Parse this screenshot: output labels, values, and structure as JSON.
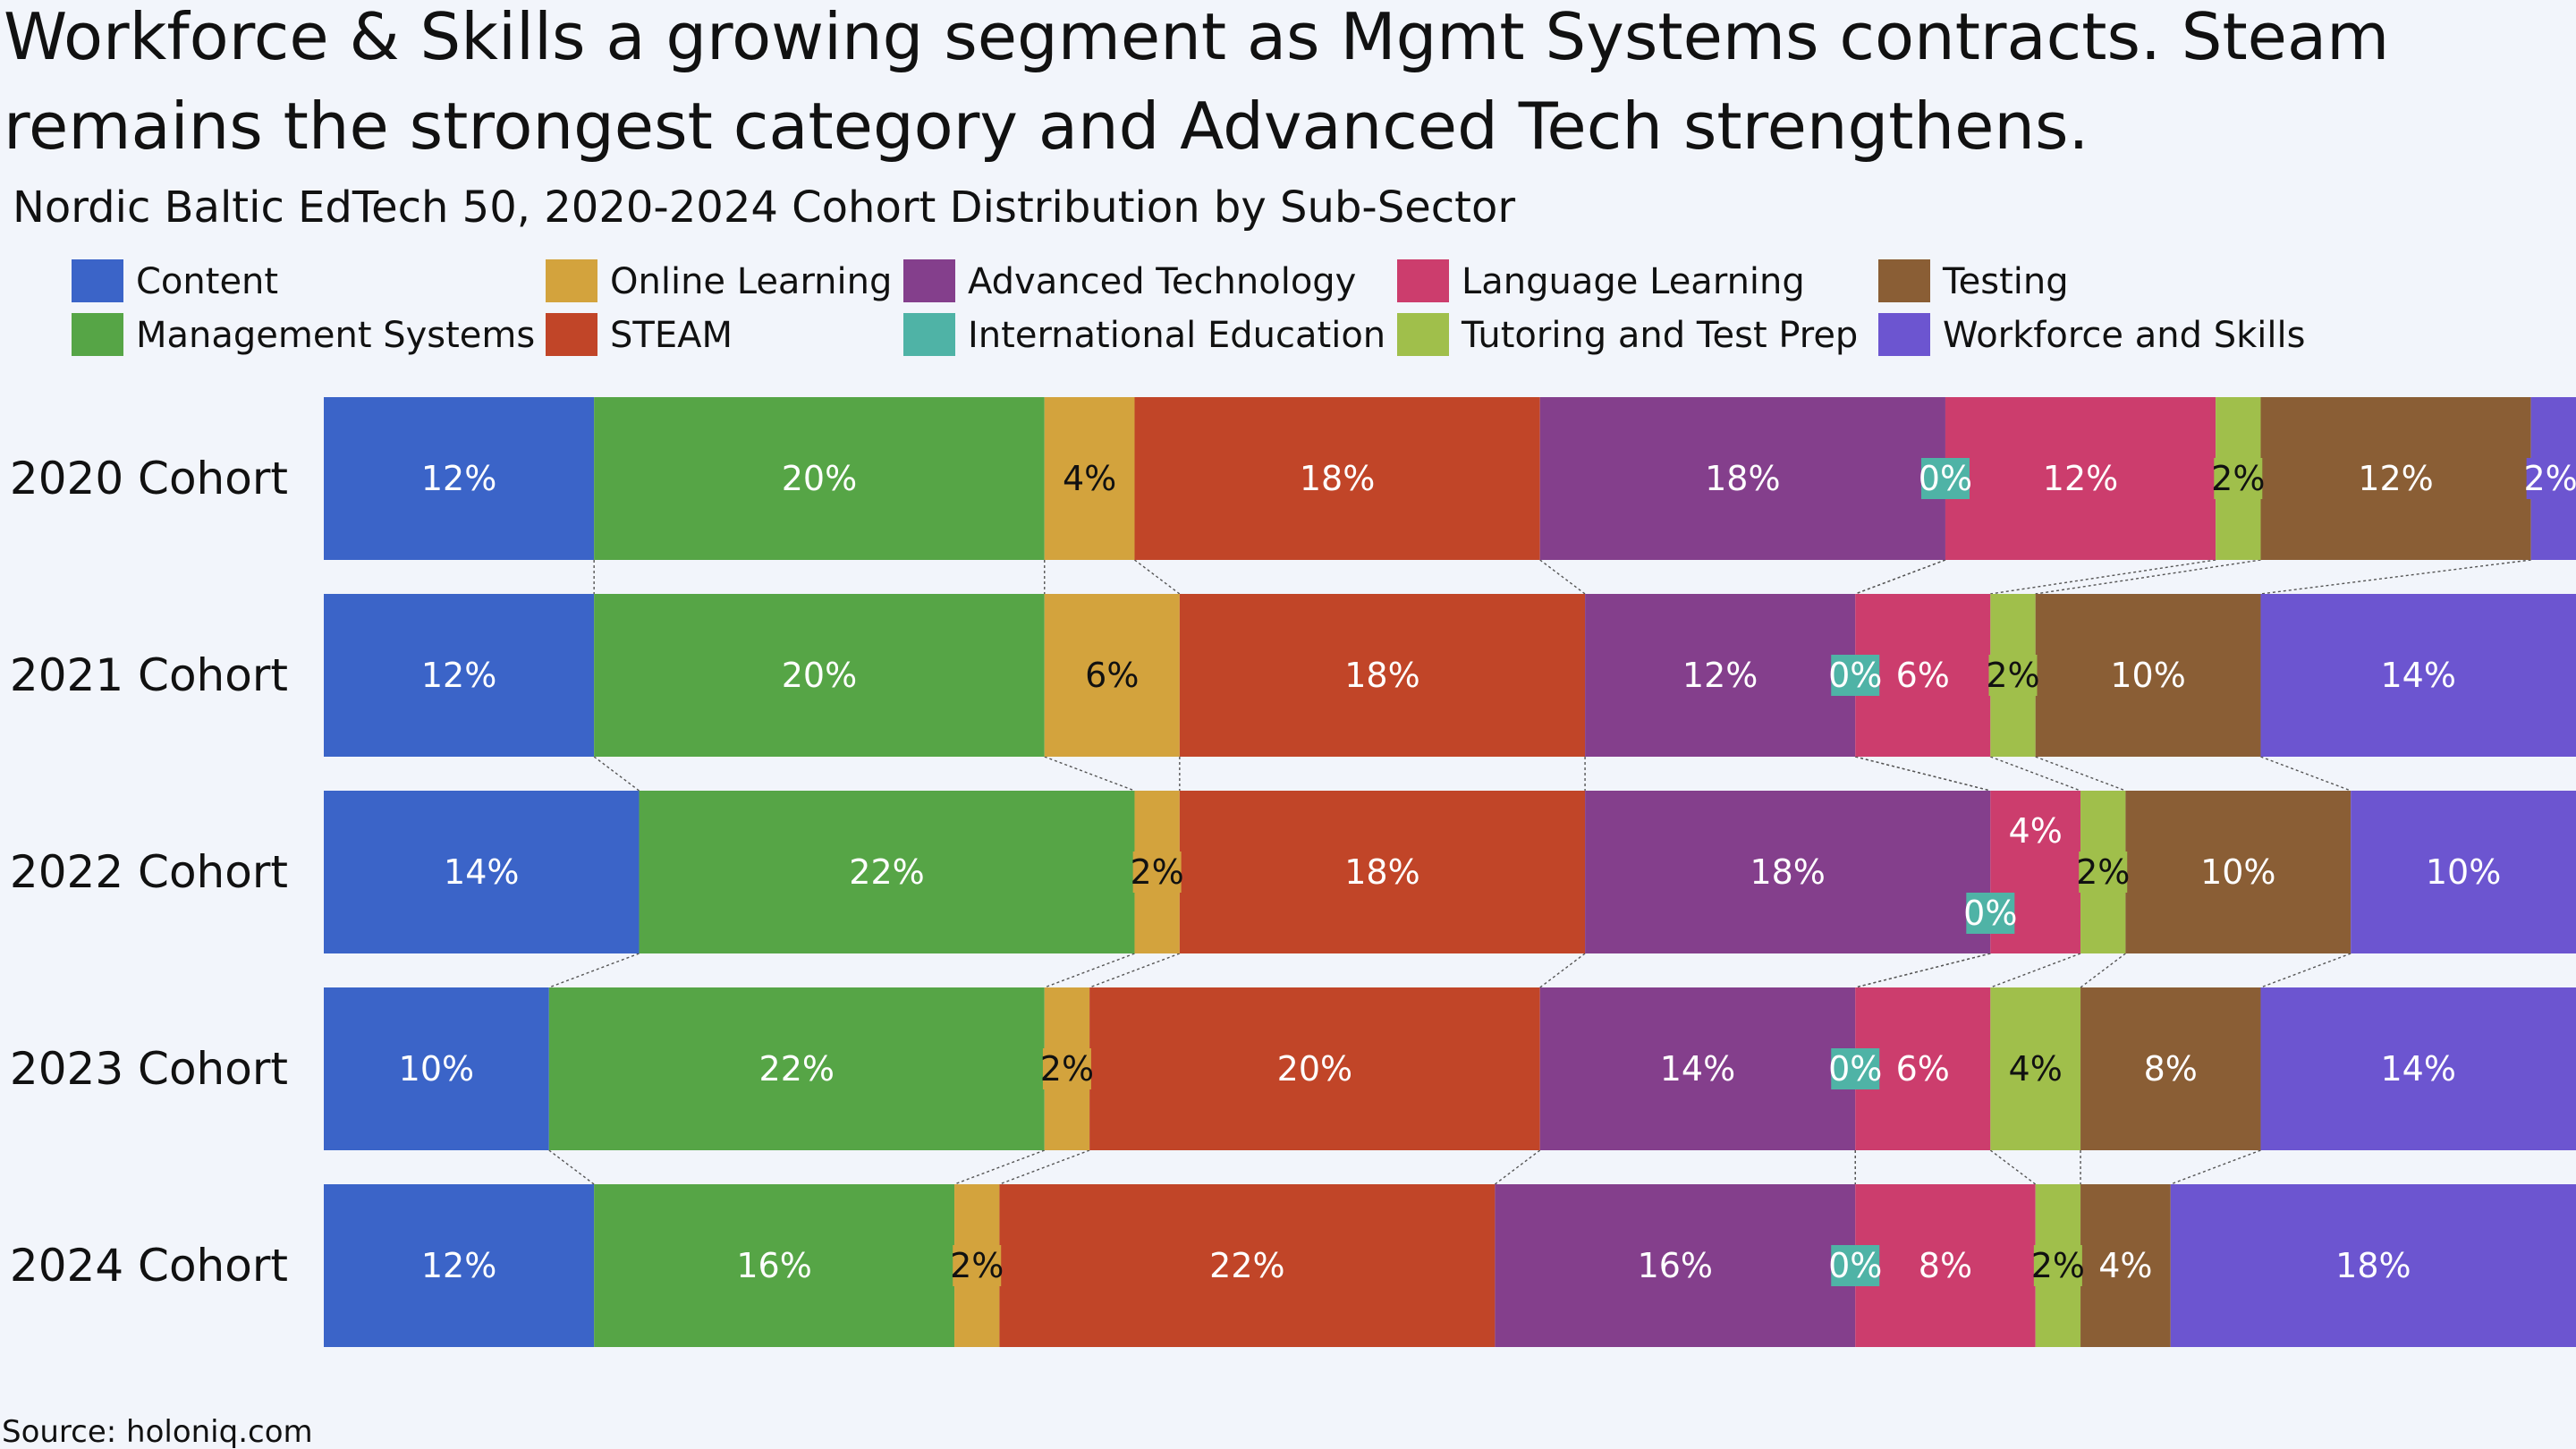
{
  "chart_data": {
    "type": "bar",
    "orientation": "horizontal",
    "stacked": "percent",
    "title": "Workforce & Skills a growing segment as Mgmt Systems contracts. Steam remains the strongest category and Advanced Tech strengthens.",
    "title_lines": [
      "Workforce & Skills a growing segment as Mgmt Systems contracts. Steam",
      "remains the strongest category and Advanced Tech strengthens."
    ],
    "subtitle": "Nordic Baltic EdTech 50, 2020-2024 Cohort Distribution by Sub-Sector",
    "source": "Source: holoniq.com",
    "legend_position": "top",
    "grid": false,
    "xlim": [
      0,
      100
    ],
    "categories": [
      "2020 Cohort",
      "2021 Cohort",
      "2022 Cohort",
      "2023 Cohort",
      "2024 Cohort"
    ],
    "series": [
      {
        "name": "Content",
        "color": "#3b64c8",
        "values": [
          12,
          12,
          14,
          10,
          12
        ]
      },
      {
        "name": "Management Systems",
        "color": "#56a546",
        "values": [
          20,
          20,
          22,
          22,
          16
        ]
      },
      {
        "name": "Online Learning",
        "color": "#d3a33d",
        "values": [
          4,
          6,
          2,
          2,
          2
        ]
      },
      {
        "name": "STEAM",
        "color": "#c14528",
        "values": [
          18,
          18,
          18,
          20,
          22
        ]
      },
      {
        "name": "Advanced Technology",
        "color": "#843f8c",
        "values": [
          18,
          12,
          18,
          14,
          16
        ]
      },
      {
        "name": "International Education",
        "color": "#4fb3a6",
        "values": [
          0,
          0,
          0,
          0,
          0
        ]
      },
      {
        "name": "Language Learning",
        "color": "#cc3d6d",
        "values": [
          12,
          6,
          4,
          6,
          8
        ]
      },
      {
        "name": "Tutoring and Test Prep",
        "color": "#a0bf4b",
        "values": [
          2,
          2,
          2,
          4,
          2
        ]
      },
      {
        "name": "Testing",
        "color": "#8a5e35",
        "values": [
          12,
          10,
          10,
          8,
          4
        ]
      },
      {
        "name": "Workforce and Skills",
        "color": "#6c55d0",
        "values": [
          2,
          14,
          10,
          14,
          18
        ]
      }
    ],
    "legend_order": [
      "Content",
      "Online Learning",
      "Advanced Technology",
      "Language Learning",
      "Testing",
      "Management Systems",
      "STEAM",
      "International Education",
      "Tutoring and Test Prep",
      "Workforce and Skills"
    ],
    "value_suffix": "%",
    "label_color_light": "#ffffff",
    "label_color_dark": "#111111",
    "dark_label_series": [
      "Online Learning",
      "Tutoring and Test Prep"
    ],
    "connector_color": "#555555"
  }
}
